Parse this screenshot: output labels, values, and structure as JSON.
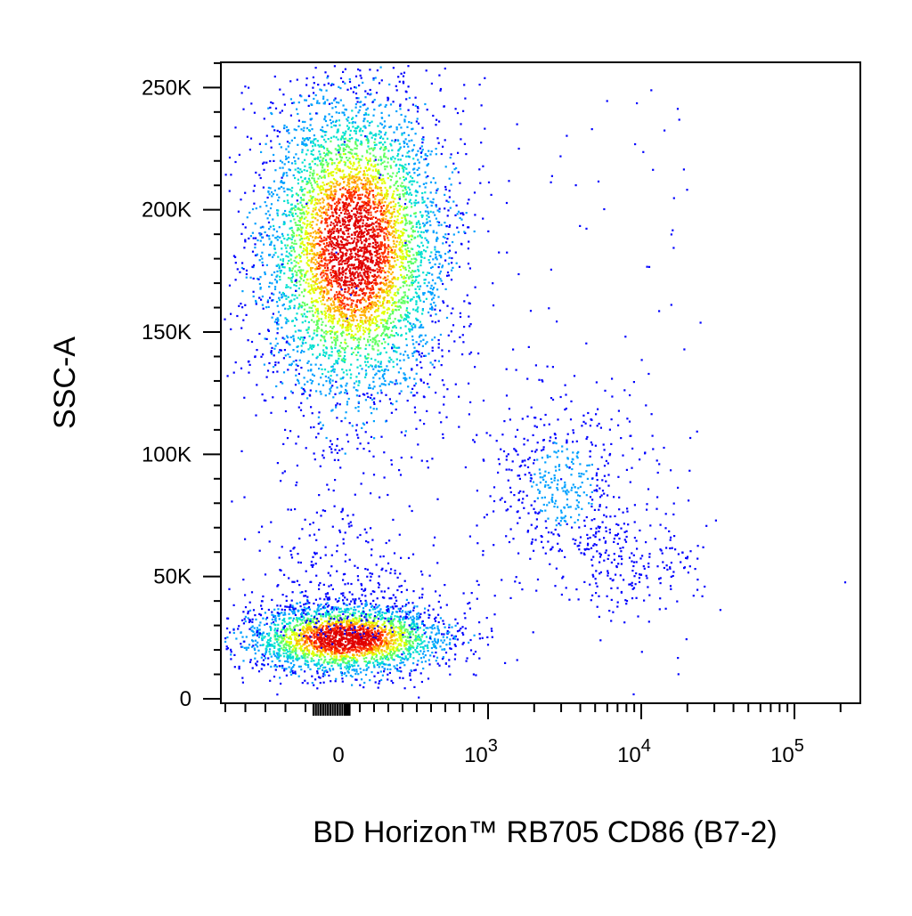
{
  "chart_data": {
    "type": "scatter",
    "subtype": "flow-cytometry pseudocolor density plot",
    "title": "",
    "xlabel": "BD Horizon™ RB705 CD86 (B7-2)",
    "ylabel": "SSC-A",
    "x_scale": "biexponential",
    "y_scale": "linear",
    "xlim": [
      -300,
      150000
    ],
    "ylim": [
      0,
      262144
    ],
    "grid": false,
    "legend": "none",
    "x_ticks": [
      {
        "value": 0,
        "label": "0",
        "sup": ""
      },
      {
        "value": 1000,
        "label": "10",
        "sup": "3"
      },
      {
        "value": 10000,
        "label": "10",
        "sup": "4"
      },
      {
        "value": 100000,
        "label": "10",
        "sup": "5"
      }
    ],
    "y_ticks": [
      {
        "value": 0,
        "label": "0"
      },
      {
        "value": 50000,
        "label": "50K"
      },
      {
        "value": 100000,
        "label": "100K"
      },
      {
        "value": 150000,
        "label": "150K"
      },
      {
        "value": 200000,
        "label": "200K"
      },
      {
        "value": 250000,
        "label": "250K"
      }
    ],
    "density_colors": [
      "#0000ff",
      "#00a0ff",
      "#00e0d0",
      "#60ff60",
      "#e0ff00",
      "#ffb000",
      "#ff3000",
      "#e00000"
    ],
    "populations": [
      {
        "x_center": 50,
        "ssc_center": 185000,
        "ssc_range": [
          115000,
          260000
        ],
        "density": "high"
      },
      {
        "x_center": 0,
        "ssc_center": 25000,
        "ssc_range": [
          12000,
          80000
        ],
        "density": "high"
      },
      {
        "x_center": 3000,
        "ssc_center": 88000,
        "ssc_range": [
          30000,
          130000
        ],
        "density": "low"
      }
    ]
  }
}
